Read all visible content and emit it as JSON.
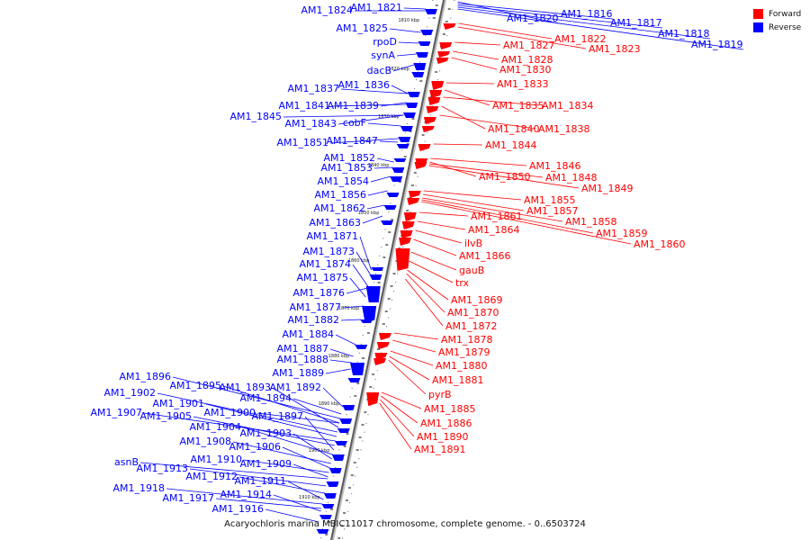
{
  "legend": [
    {
      "label": "Forward",
      "color": "#ff0000"
    },
    {
      "label": "Reverse",
      "color": "#0000ff"
    }
  ],
  "caption": "Acaryochloris marina MBIC11017 chromosome, complete genome. - 0..6503724",
  "colors": {
    "forward": "#ff0000",
    "reverse": "#0000ff",
    "axis": "#888888"
  },
  "ticks": [
    "1810 kbp",
    "1820 kbp",
    "1830 kbp",
    "1840 kbp",
    "1850 kbp",
    "1860 kbp",
    "1870 kbp",
    "1880 kbp",
    "1890 kbp",
    "1900 kbp",
    "1910 kbp"
  ],
  "reverse_genes": [
    "AM1_1824",
    "AM1_1821",
    "AM1_1825",
    "rpoD",
    "synA",
    "dacB",
    "AM1_1837",
    "AM1_1836",
    "AM1_1841",
    "AM1_1839",
    "AM1_1845",
    "AM1_1843",
    "cobF",
    "AM1_1851",
    "AM1_1847",
    "AM1_1852",
    "AM1_1853",
    "AM1_1854",
    "AM1_1856",
    "AM1_1862",
    "AM1_1863",
    "AM1_1871",
    "AM1_1873",
    "AM1_1874",
    "AM1_1875",
    "AM1_1876",
    "AM1_1877",
    "AM1_1882",
    "AM1_1884",
    "AM1_1887",
    "AM1_1888",
    "AM1_1889",
    "AM1_1896",
    "AM1_1895",
    "AM1_1893",
    "AM1_1892",
    "AM1_1902",
    "AM1_1901",
    "AM1_1894",
    "AM1_1907",
    "AM1_1905",
    "AM1_1900",
    "AM1_1897",
    "AM1_1904",
    "AM1_1903",
    "AM1_1908",
    "AM1_1906",
    "AM1_1910",
    "AM1_1909",
    "asnB",
    "AM1_1913",
    "AM1_1912",
    "AM1_1911",
    "AM1_1918",
    "AM1_1917",
    "AM1_1914",
    "AM1_1916",
    "AM1_1820",
    "AM1_1816",
    "AM1_1817",
    "AM1_1818",
    "AM1_1819"
  ],
  "forward_genes": [
    "AM1_1822",
    "AM1_1827",
    "AM1_1823",
    "AM1_1828",
    "AM1_1830",
    "AM1_1833",
    "AM1_1835",
    "AM1_1834",
    "AM1_1840",
    "AM1_1838",
    "AM1_1844",
    "AM1_1846",
    "AM1_1850",
    "AM1_1848",
    "AM1_1849",
    "AM1_1855",
    "AM1_1857",
    "AM1_1861",
    "AM1_1858",
    "AM1_1864",
    "AM1_1859",
    "AM1_1860",
    "ilvB",
    "AM1_1866",
    "gauB",
    "trx",
    "AM1_1869",
    "AM1_1870",
    "AM1_1872",
    "AM1_1878",
    "AM1_1879",
    "AM1_1880",
    "AM1_1881",
    "pyrB",
    "AM1_1885",
    "AM1_1886",
    "AM1_1890",
    "AM1_1891"
  ]
}
